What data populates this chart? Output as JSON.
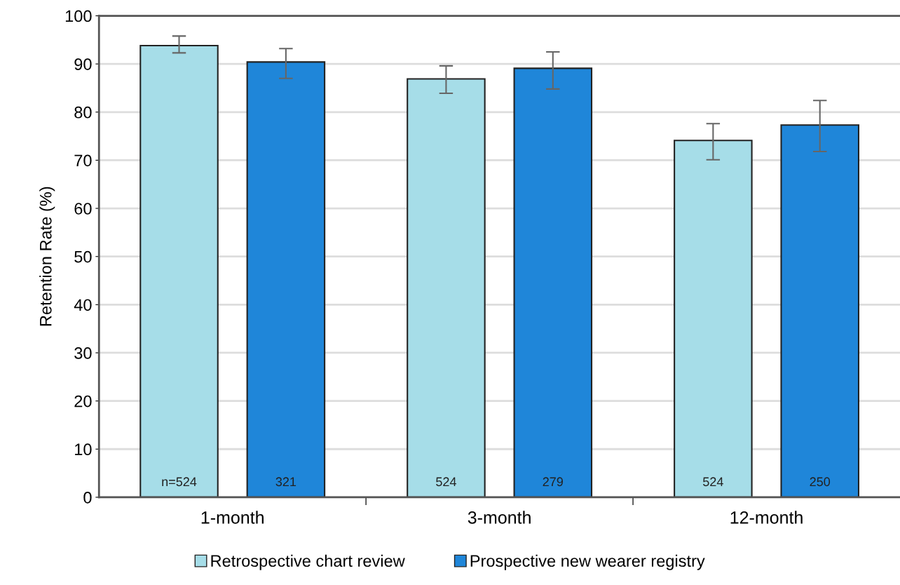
{
  "chart_data": {
    "type": "bar",
    "ylabel": "Retention Rate (%)",
    "categories": [
      "1-month",
      "3-month",
      "12-month"
    ],
    "series": [
      {
        "name": "Retrospective chart review",
        "color": "#a6dde8",
        "values": [
          93.8,
          86.9,
          74.1
        ],
        "errors": [
          [
            92.3,
            95.8
          ],
          [
            83.9,
            89.6
          ],
          [
            70.1,
            77.6
          ]
        ]
      },
      {
        "name": "Prospective new wearer registry",
        "color": "#1f86d9",
        "values": [
          90.4,
          89.1,
          77.3
        ],
        "errors": [
          [
            87.0,
            93.2
          ],
          [
            84.8,
            92.5
          ],
          [
            71.8,
            82.4
          ]
        ]
      }
    ],
    "ylim": [
      0,
      100
    ],
    "yticks": [
      0,
      10,
      20,
      30,
      40,
      50,
      60,
      70,
      80,
      90,
      100
    ],
    "grid": "y",
    "legend": "bottom",
    "annotations": [
      "n=524",
      "321",
      "524",
      "279",
      "524",
      "250"
    ]
  }
}
